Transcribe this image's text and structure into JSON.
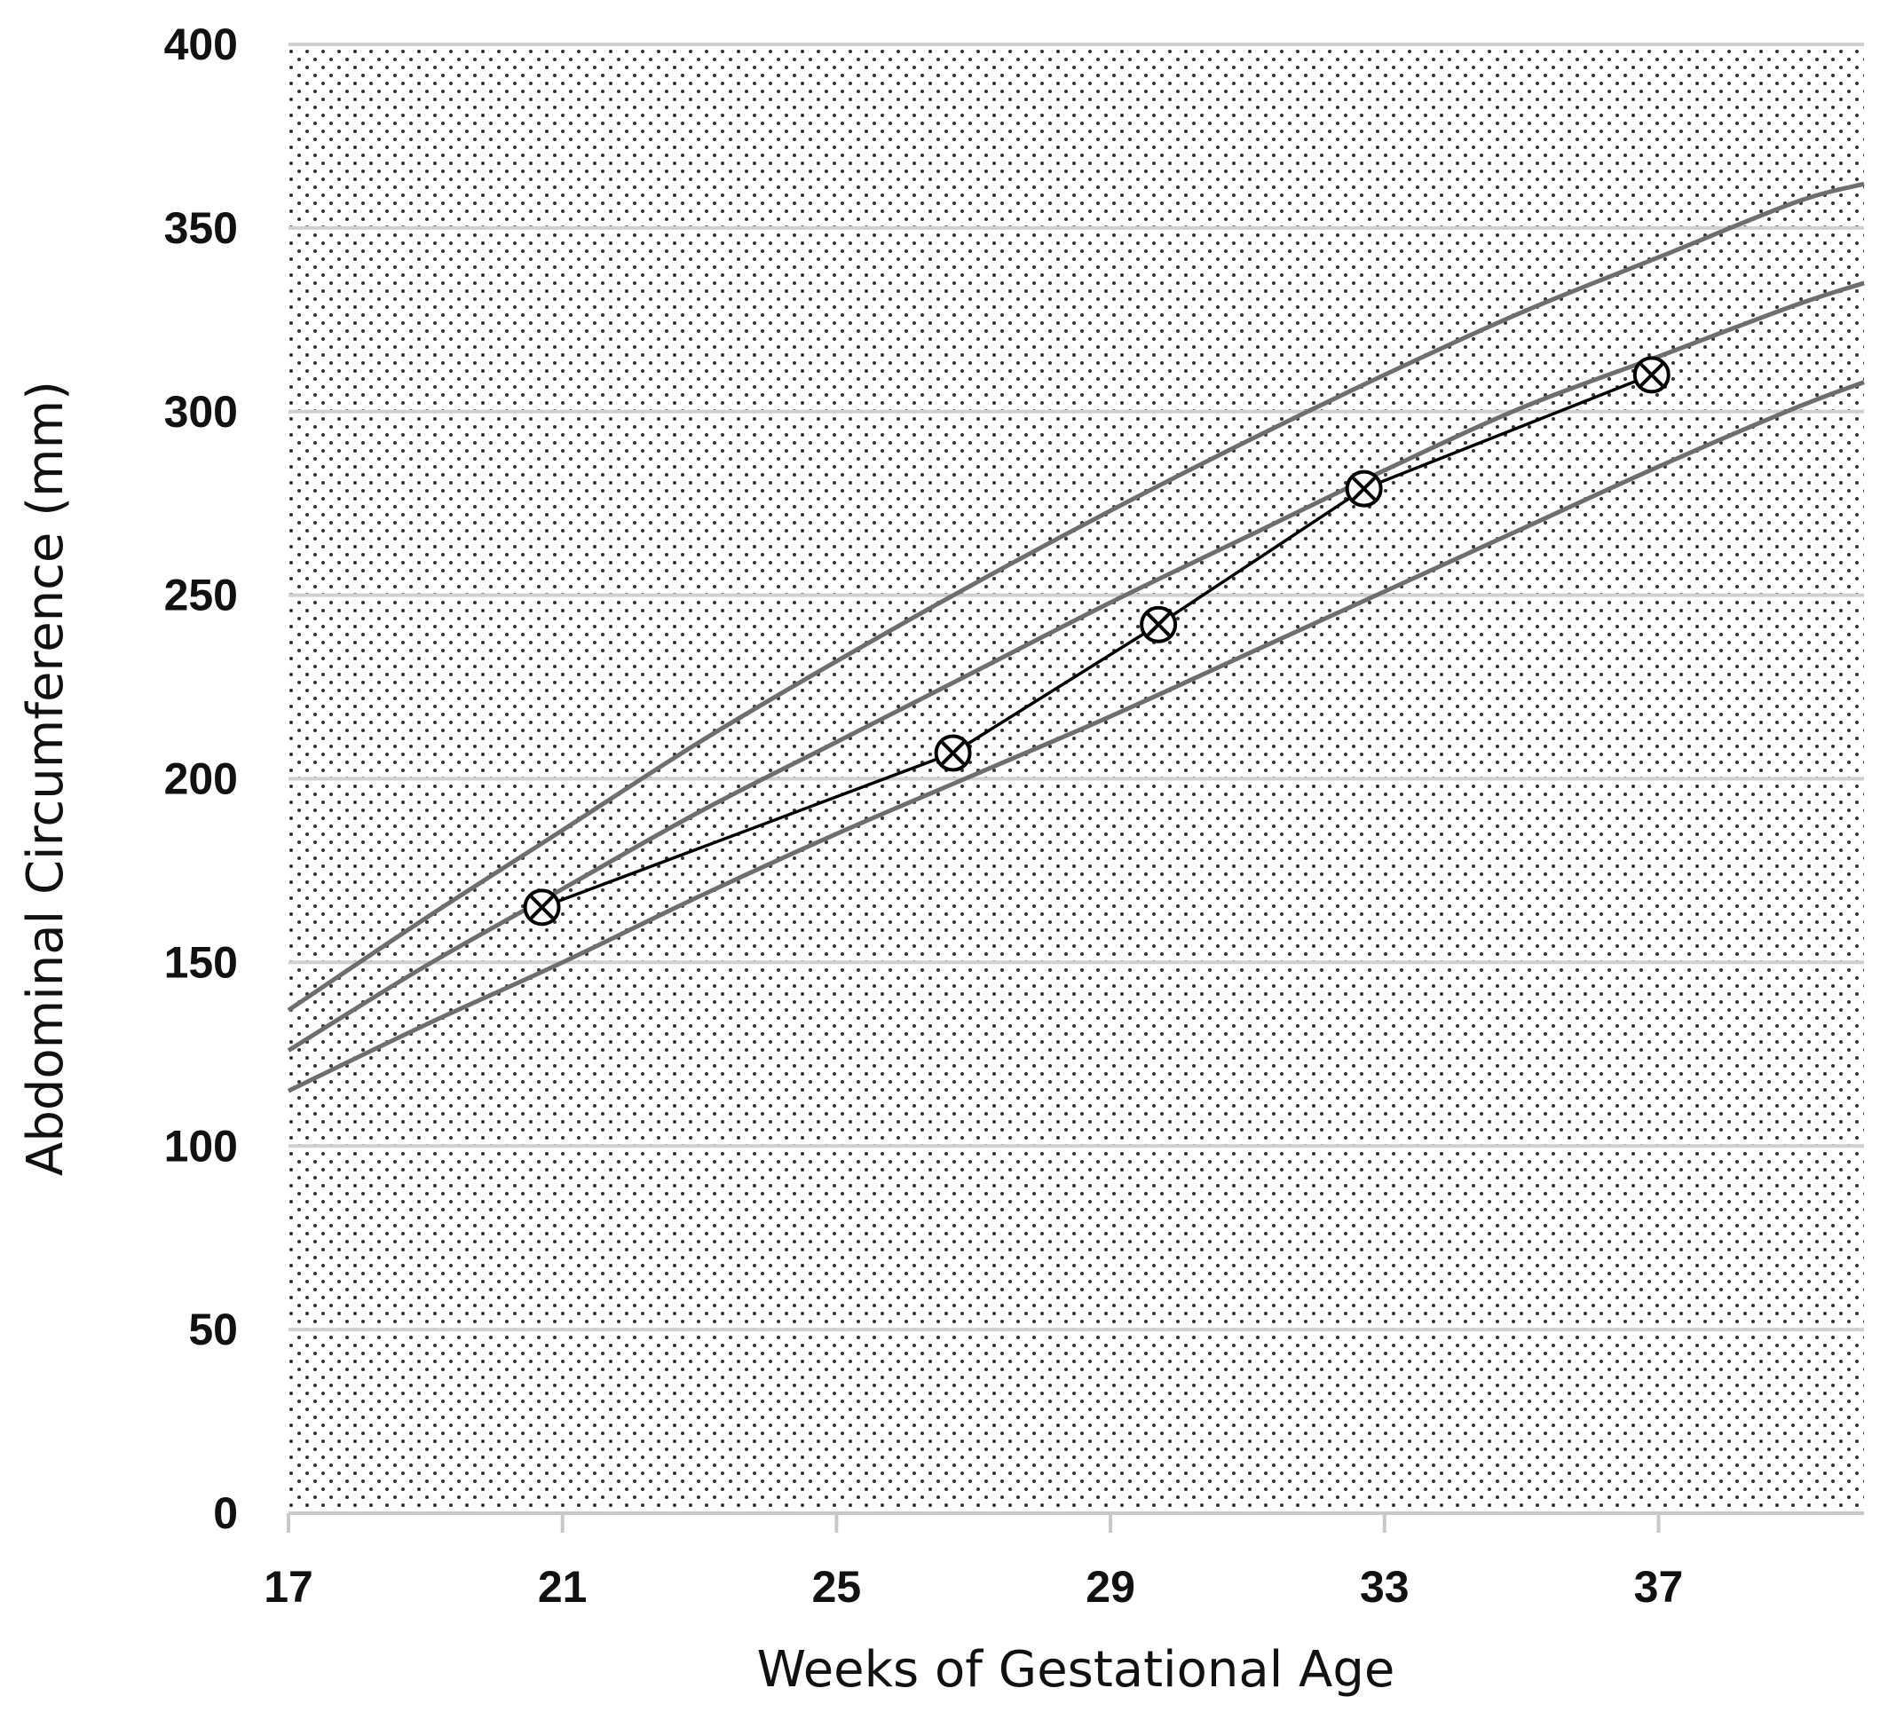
{
  "chart_data": {
    "type": "line",
    "title": "",
    "xlabel": "Weeks of Gestational Age",
    "ylabel": "Abdominal Circumference (mm)",
    "xlim": [
      17,
      40
    ],
    "ylim": [
      0,
      400
    ],
    "x_ticks": [
      17,
      21,
      25,
      29,
      33,
      37
    ],
    "y_ticks": [
      0,
      50,
      100,
      150,
      200,
      250,
      300,
      350,
      400
    ],
    "grid": "horizontal",
    "background": "dotted",
    "reference_curves": [
      {
        "points": [
          [
            17,
            137
          ],
          [
            19,
            162
          ],
          [
            21,
            186
          ],
          [
            23,
            210
          ],
          [
            25,
            232
          ],
          [
            27,
            253
          ],
          [
            29,
            273
          ],
          [
            31,
            292
          ],
          [
            33,
            310
          ],
          [
            35,
            327
          ],
          [
            37,
            342
          ],
          [
            39,
            357
          ],
          [
            40,
            362
          ]
        ]
      },
      {
        "points": [
          [
            17,
            126
          ],
          [
            19,
            149
          ],
          [
            21,
            170
          ],
          [
            23,
            191
          ],
          [
            25,
            210
          ],
          [
            27,
            229
          ],
          [
            29,
            248
          ],
          [
            31,
            266
          ],
          [
            33,
            284
          ],
          [
            35,
            301
          ],
          [
            37,
            315
          ],
          [
            39,
            329
          ],
          [
            40,
            335
          ]
        ]
      },
      {
        "points": [
          [
            17,
            115
          ],
          [
            19,
            133
          ],
          [
            21,
            150
          ],
          [
            23,
            168
          ],
          [
            25,
            185
          ],
          [
            27,
            201
          ],
          [
            29,
            217
          ],
          [
            31,
            234
          ],
          [
            33,
            251
          ],
          [
            35,
            268
          ],
          [
            37,
            285
          ],
          [
            39,
            301
          ],
          [
            40,
            308
          ]
        ]
      }
    ],
    "measurements": [
      {
        "x": 20.7,
        "y": 165
      },
      {
        "x": 26.7,
        "y": 207
      },
      {
        "x": 29.7,
        "y": 242
      },
      {
        "x": 32.7,
        "y": 279
      },
      {
        "x": 36.9,
        "y": 310
      }
    ],
    "colors": {
      "reference": "#6e6e6e",
      "measurement": "#000000",
      "grid": "#d0d0d0",
      "dots": "#222222"
    }
  }
}
